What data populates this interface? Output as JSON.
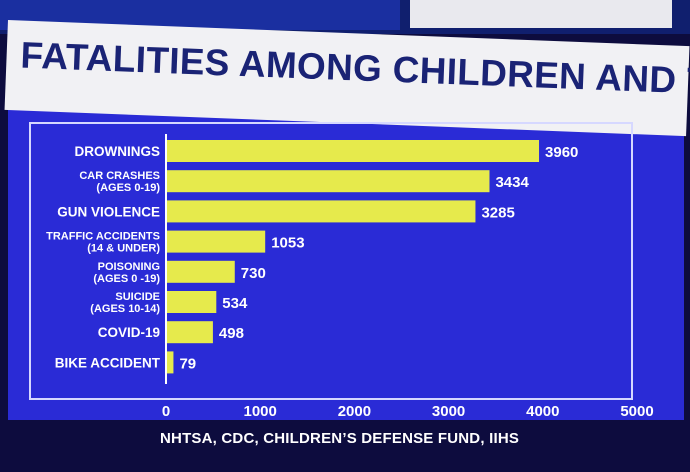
{
  "title": "FATALITIES AMONG CHILDREN AND TEENS",
  "source": "NHTSA, CDC, CHILDREN’S DEFENSE FUND, IIHS",
  "colors": {
    "bar": "#e6ea4c",
    "panel": "#2a2bd6",
    "title_text": "#1a2375",
    "title_bg": "#f1f1f4"
  },
  "chart_data": {
    "type": "bar",
    "orientation": "horizontal",
    "title": "FATALITIES AMONG CHILDREN AND TEENS",
    "categories": [
      [
        "DROWNINGS"
      ],
      [
        "CAR CRASHES",
        "(AGES 0-19)"
      ],
      [
        "GUN VIOLENCE"
      ],
      [
        "TRAFFIC ACCIDENTS",
        "(14 & UNDER)"
      ],
      [
        "POISONING",
        "(AGES 0 -19)"
      ],
      [
        "SUICIDE",
        "(AGES 10-14)"
      ],
      [
        "COVID-19"
      ],
      [
        "BIKE ACCIDENT"
      ]
    ],
    "values": [
      3960,
      3434,
      3285,
      1053,
      730,
      534,
      498,
      79
    ],
    "data_labels": [
      "3960",
      "3434",
      "3285",
      "1053",
      "730",
      "534",
      "498",
      "79"
    ],
    "xlim": [
      0,
      5000
    ],
    "xticks": [
      0,
      1000,
      2000,
      3000,
      4000,
      5000
    ],
    "xtick_labels": [
      "0",
      "1000",
      "2000",
      "3000",
      "4000",
      "5000"
    ],
    "xlabel": "",
    "ylabel": "",
    "grid": false,
    "legend": "none"
  }
}
